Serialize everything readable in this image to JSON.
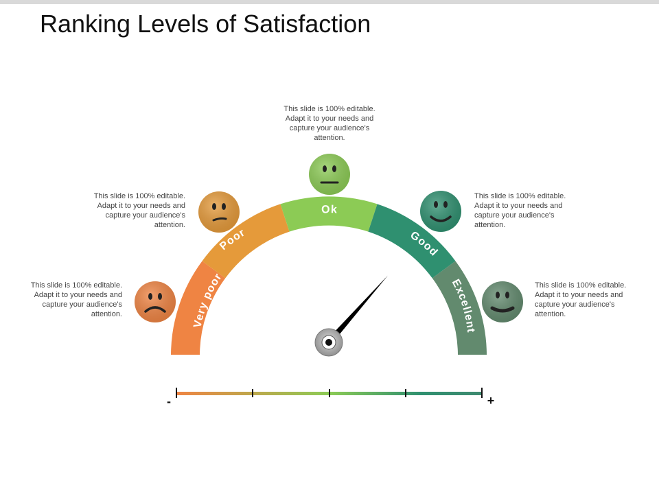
{
  "title": "Ranking Levels of Satisfaction",
  "levels": [
    {
      "label": "Very poor",
      "color": "#EF8443",
      "face_color": "#EF8443",
      "face": "frown-face-icon",
      "note": "This slide is 100% editable. Adapt it to your needs and capture your audience's attention."
    },
    {
      "label": "Poor",
      "color": "#E59A3A",
      "face_color": "#E59A3A",
      "face": "flat-frown-face-icon",
      "note": "This slide is 100% editable. Adapt it to your needs and capture your audience's attention."
    },
    {
      "label": "Ok",
      "color": "#8CCB55",
      "face_color": "#8CCB55",
      "face": "neutral-face-icon",
      "note": "This slide is 100% editable. Adapt it to your needs and capture your audience's attention."
    },
    {
      "label": "Good",
      "color": "#2F9070",
      "face_color": "#2F9070",
      "face": "smile-face-icon",
      "note": "This slide is 100% editable. Adapt it to your needs and capture your audience's attention."
    },
    {
      "label": "Excellent",
      "color": "#628A6E",
      "face_color": "#628A6E",
      "face": "big-smile-face-icon",
      "note": "This slide is 100% editable. Adapt it to your needs and capture your audience's attention."
    }
  ],
  "scale": {
    "min_label": "-",
    "max_label": "+",
    "gradient": [
      "#EF8443",
      "#8CCB55",
      "#2F9070",
      "#3E8A70"
    ]
  },
  "needle_value": 0.73
}
